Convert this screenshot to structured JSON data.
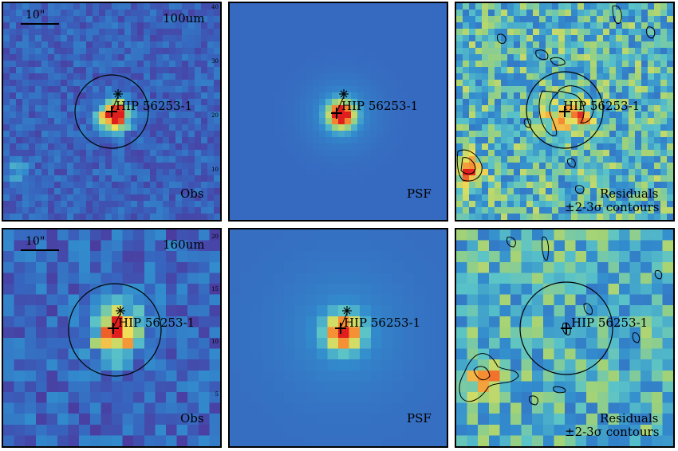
{
  "figure": {
    "object": "HIP 56253-1",
    "scale_label": "10\"",
    "rows": [
      {
        "band": "100um",
        "obs_label": "Obs",
        "psf_label": "PSF",
        "res_label1": "Residuals",
        "res_label2": "±2-3σ contours",
        "tick_labels": [
          "40",
          "30",
          "20",
          "10"
        ]
      },
      {
        "band": "160um",
        "obs_label": "Obs",
        "psf_label": "PSF",
        "res_label1": "Residuals",
        "res_label2": "±2-3σ contours",
        "tick_labels": [
          "20",
          "15",
          "10",
          "5"
        ]
      }
    ]
  },
  "colors": {
    "low": "#4b2a8a",
    "mid": "#2f7fc8",
    "high_cyan": "#5fc8d8",
    "green": "#9fd47a",
    "yellow": "#f0e060",
    "orange": "#f08a30",
    "red": "#e02020"
  }
}
